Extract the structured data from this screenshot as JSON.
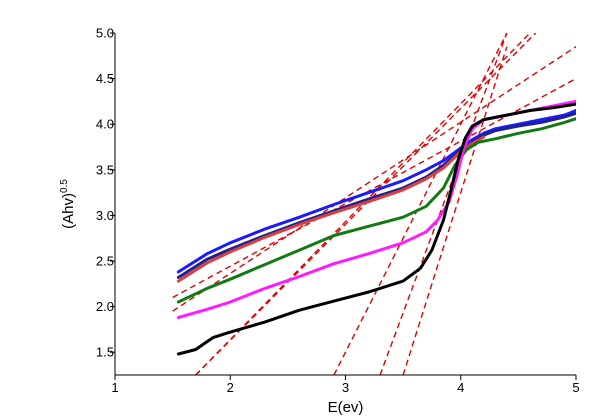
{
  "chart_data": {
    "type": "line",
    "title": "",
    "xlabel": "E(ev)",
    "ylabel_base": "(Ahv)",
    "ylabel_superscript": "0.5",
    "xlim": [
      1,
      5
    ],
    "ylim": [
      1.25,
      5.0
    ],
    "x_ticks": [
      "1",
      "2",
      "3",
      "4",
      "5"
    ],
    "y_ticks": [
      "1.5",
      "2.0",
      "2.5",
      "3.0",
      "3.5",
      "4.0",
      "4.5",
      "5.0"
    ],
    "grid": false,
    "legend": "none",
    "series": [
      {
        "color": "#1a1aff",
        "x": [
          1.55,
          1.8,
          2.0,
          2.3,
          2.6,
          2.9,
          3.2,
          3.5,
          3.7,
          3.85,
          4.0,
          4.1,
          4.2,
          4.3,
          4.5,
          4.7,
          4.9,
          5.0
        ],
        "y": [
          2.38,
          2.58,
          2.7,
          2.85,
          2.98,
          3.12,
          3.25,
          3.38,
          3.5,
          3.6,
          3.74,
          3.83,
          3.9,
          3.95,
          4.0,
          4.05,
          4.1,
          4.15
        ]
      },
      {
        "color": "#22228a",
        "x": [
          1.55,
          1.8,
          2.0,
          2.3,
          2.6,
          2.9,
          3.2,
          3.5,
          3.7,
          3.85,
          4.0,
          4.1,
          4.2,
          4.3,
          4.5,
          4.7,
          4.9,
          5.0
        ],
        "y": [
          2.32,
          2.52,
          2.63,
          2.78,
          2.92,
          3.05,
          3.18,
          3.3,
          3.42,
          3.55,
          3.72,
          3.8,
          3.88,
          3.93,
          3.98,
          4.02,
          4.08,
          4.12
        ]
      },
      {
        "color": "#d94040",
        "x": [
          1.55,
          1.8,
          2.0,
          2.3,
          2.6,
          2.9,
          3.2,
          3.5,
          3.7,
          3.85,
          4.0,
          4.1,
          4.2
        ],
        "y": [
          2.28,
          2.48,
          2.6,
          2.76,
          2.9,
          3.03,
          3.15,
          3.28,
          3.4,
          3.52,
          3.7,
          3.79,
          3.86
        ]
      },
      {
        "color": "#137a13",
        "x": [
          1.55,
          1.8,
          2.0,
          2.3,
          2.6,
          2.9,
          3.2,
          3.5,
          3.7,
          3.85,
          3.95,
          4.05,
          4.15,
          4.3,
          4.5,
          4.7,
          4.9,
          5.0
        ],
        "y": [
          2.05,
          2.2,
          2.3,
          2.46,
          2.62,
          2.78,
          2.88,
          2.98,
          3.1,
          3.3,
          3.55,
          3.72,
          3.8,
          3.84,
          3.9,
          3.95,
          4.02,
          4.06
        ]
      },
      {
        "color": "#ff1aff",
        "x": [
          1.55,
          1.8,
          2.0,
          2.3,
          2.6,
          2.9,
          3.2,
          3.5,
          3.7,
          3.8,
          3.9,
          3.97,
          4.03,
          4.1,
          4.2,
          4.4,
          4.6,
          4.8,
          5.0
        ],
        "y": [
          1.88,
          1.97,
          2.05,
          2.2,
          2.33,
          2.47,
          2.58,
          2.7,
          2.82,
          2.95,
          3.15,
          3.45,
          3.75,
          3.95,
          4.05,
          4.1,
          4.15,
          4.2,
          4.25
        ]
      },
      {
        "color": "#000000",
        "x": [
          1.55,
          1.7,
          1.78,
          1.85,
          2.0,
          2.3,
          2.6,
          2.9,
          3.2,
          3.5,
          3.65,
          3.75,
          3.85,
          3.92,
          3.98,
          4.04,
          4.1,
          4.2,
          4.4,
          4.6,
          4.8,
          5.0
        ],
        "y": [
          1.48,
          1.53,
          1.6,
          1.66,
          1.72,
          1.83,
          1.96,
          2.06,
          2.16,
          2.28,
          2.42,
          2.62,
          2.95,
          3.3,
          3.62,
          3.85,
          3.98,
          4.05,
          4.1,
          4.15,
          4.18,
          4.22
        ]
      }
    ],
    "fit_lines": [
      {
        "color": "#e00000",
        "x": [
          1.5,
          5.0
        ],
        "y": [
          2.1,
          4.5
        ]
      },
      {
        "color": "#e00000",
        "x": [
          1.5,
          5.0
        ],
        "y": [
          1.95,
          4.85
        ]
      },
      {
        "color": "#e00000",
        "x": [
          1.7,
          4.65
        ],
        "y": [
          1.25,
          5.0
        ]
      },
      {
        "color": "#e00000",
        "x": [
          1.7,
          4.6
        ],
        "y": [
          1.25,
          5.0
        ]
      },
      {
        "color": "#e00000",
        "x": [
          2.9,
          4.4
        ],
        "y": [
          1.25,
          5.0
        ]
      },
      {
        "color": "#e00000",
        "x": [
          3.3,
          4.4
        ],
        "y": [
          1.25,
          5.0
        ]
      },
      {
        "color": "#e00000",
        "x": [
          3.5,
          4.4
        ],
        "y": [
          1.25,
          4.85
        ]
      }
    ]
  }
}
